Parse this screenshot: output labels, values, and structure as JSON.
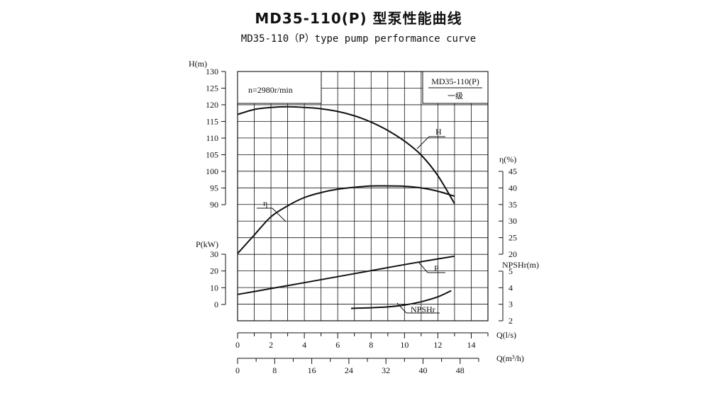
{
  "title": "MD35-110(P) 型泵性能曲线",
  "subtitle": "MD35-110（P）type pump performance curve",
  "chart_data": {
    "type": "line",
    "speed_note": "n=2980r/min",
    "model_box": {
      "model": "MD35-110(P)",
      "stage": "一级"
    },
    "axes": {
      "H": {
        "label": "H(m)",
        "range": [
          90,
          130
        ],
        "ticks": [
          90,
          95,
          100,
          105,
          110,
          115,
          120,
          125,
          130
        ]
      },
      "P": {
        "label": "P(kW)",
        "range": [
          0,
          30
        ],
        "ticks": [
          0,
          10,
          20,
          30
        ]
      },
      "eta": {
        "label": "η(%)",
        "range": [
          20,
          45
        ],
        "ticks": [
          20,
          25,
          30,
          35,
          40,
          45
        ]
      },
      "npsh": {
        "label": "NPSHr(m)",
        "range": [
          2,
          5
        ],
        "ticks": [
          2,
          3,
          4,
          5
        ]
      },
      "Q_ls": {
        "label": "Q(l/s)",
        "range": [
          0,
          14
        ],
        "ticks": [
          0,
          2,
          4,
          6,
          8,
          10,
          12,
          14
        ]
      },
      "Q_m3h": {
        "label": "Q(m³/h)",
        "ticks": [
          0,
          8,
          16,
          24,
          32,
          40,
          48
        ]
      }
    },
    "grid": true,
    "series": [
      {
        "name": "H",
        "axis": "H",
        "x": [
          0,
          1,
          2,
          3,
          4,
          5,
          6,
          7,
          8,
          9,
          10,
          11,
          12,
          13
        ],
        "y": [
          117.1,
          118.6,
          119.2,
          119.4,
          119.2,
          118.8,
          118.0,
          116.7,
          114.8,
          112.3,
          109.1,
          104.9,
          98.7,
          90.3
        ]
      },
      {
        "name": "η",
        "axis": "eta",
        "x": [
          0,
          1,
          2,
          3,
          4,
          5,
          6,
          7,
          8,
          9,
          10,
          11,
          12,
          13
        ],
        "y": [
          20.2,
          25.8,
          31.3,
          34.6,
          37.1,
          38.6,
          39.6,
          40.2,
          40.6,
          40.6,
          40.5,
          40.0,
          39.0,
          37.5
        ]
      },
      {
        "name": "P",
        "axis": "P",
        "x": [
          0,
          2,
          4,
          6,
          8,
          10,
          12,
          13
        ],
        "y": [
          6.0,
          9.5,
          13.0,
          16.6,
          20.2,
          23.8,
          27.2,
          28.8
        ]
      },
      {
        "name": "NPSHr",
        "axis": "npsh",
        "x": [
          6.8,
          8,
          9,
          10,
          11,
          12,
          12.8
        ],
        "y": [
          2.75,
          2.79,
          2.84,
          2.95,
          3.15,
          3.45,
          3.82
        ]
      }
    ]
  }
}
